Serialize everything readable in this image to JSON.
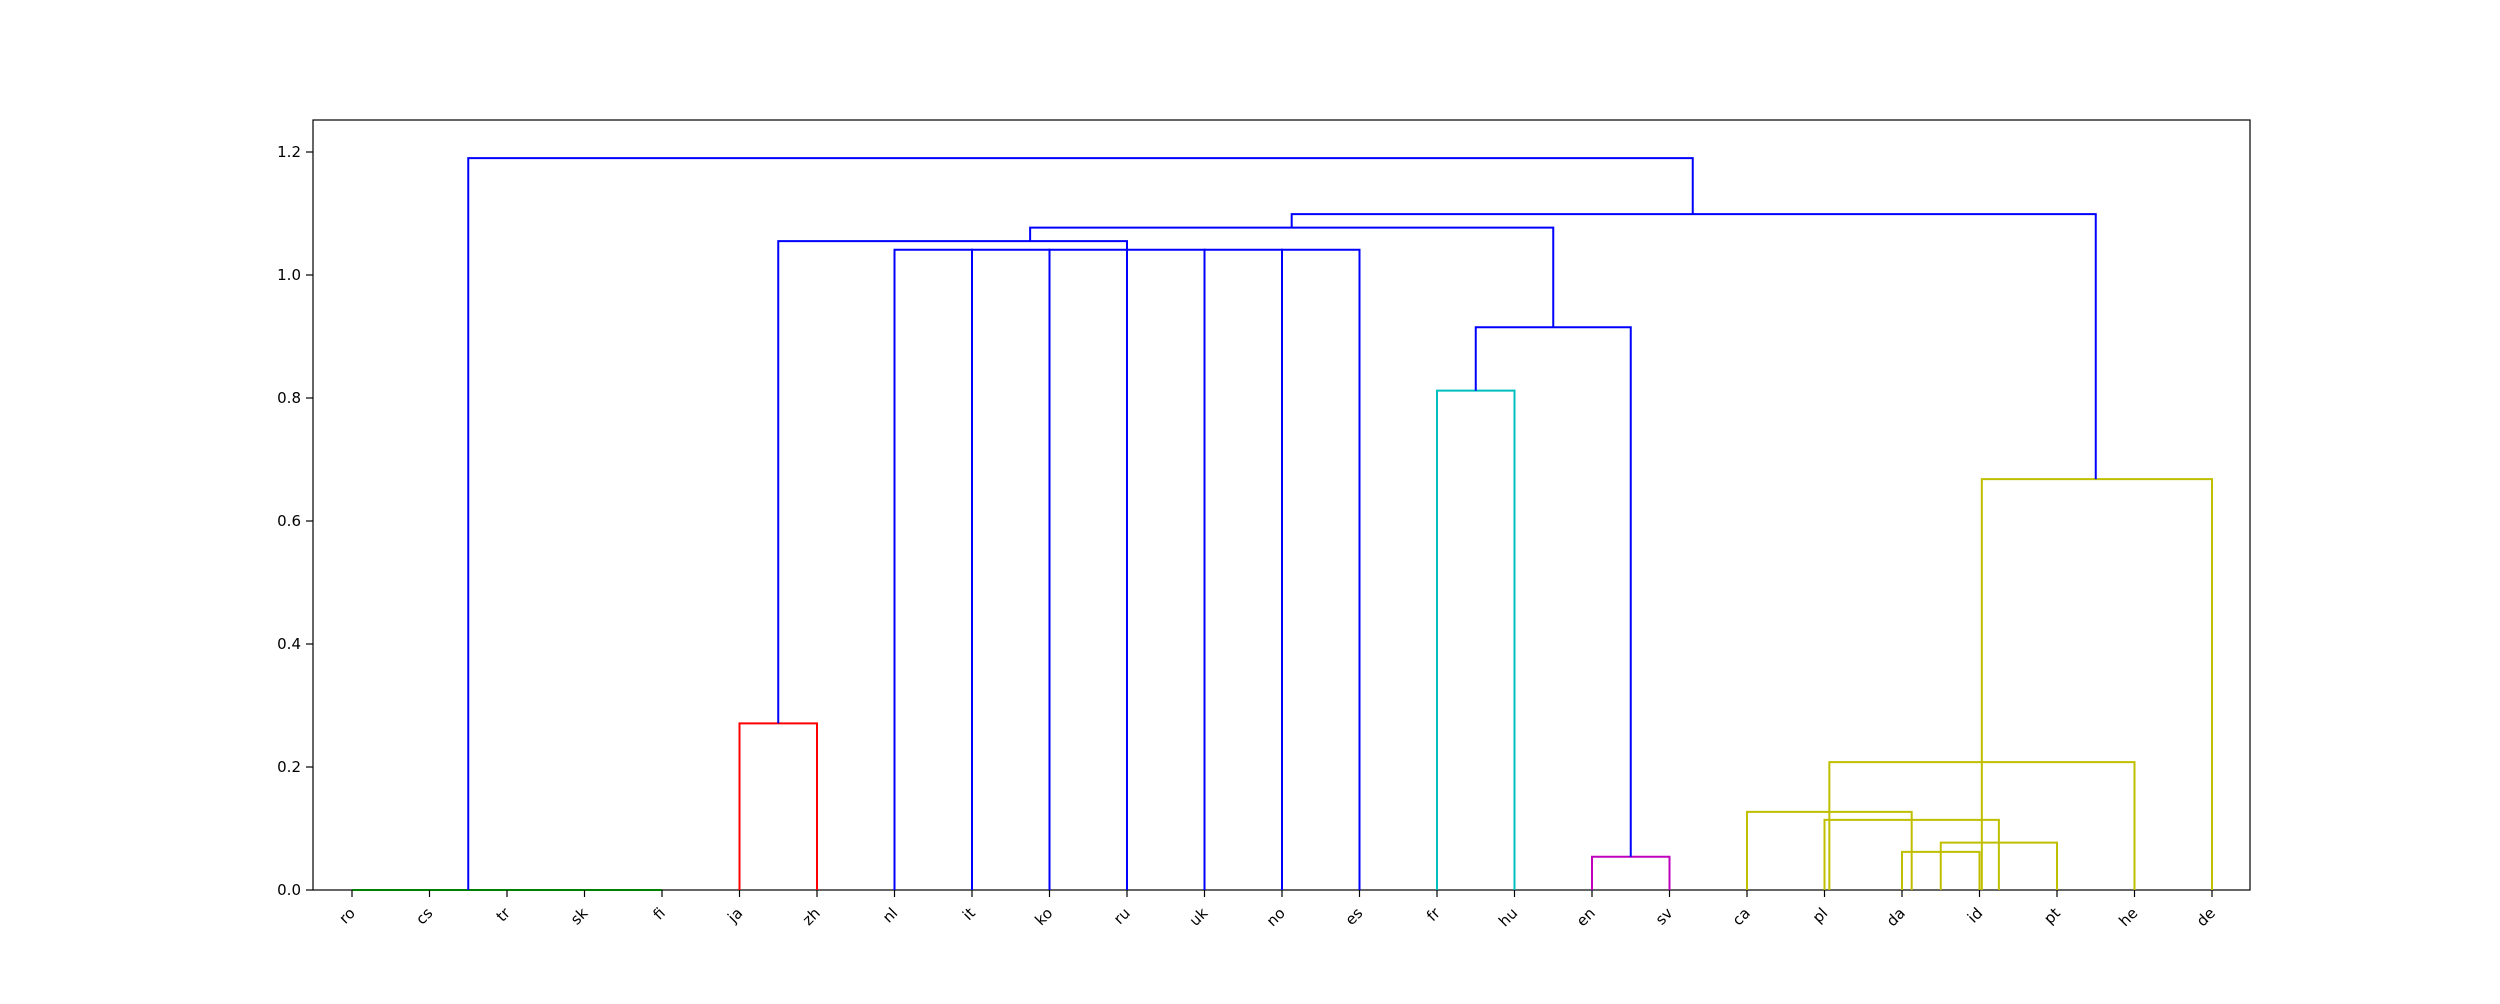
{
  "chart_data": {
    "type": "dendrogram",
    "title": "",
    "xlabel": "",
    "ylabel": "",
    "ylim": [
      0,
      1.25
    ],
    "y_ticks": [
      "0.0",
      "0.2",
      "0.4",
      "0.6",
      "0.8",
      "1.0",
      "1.2"
    ],
    "y_tick_values": [
      0.0,
      0.2,
      0.4,
      0.6,
      0.8,
      1.0,
      1.2
    ],
    "leaves": [
      "ro",
      "cs",
      "tr",
      "sk",
      "fi",
      "ja",
      "zh",
      "nl",
      "it",
      "ko",
      "ru",
      "uk",
      "no",
      "es",
      "fr",
      "hu",
      "en",
      "sv",
      "ca",
      "pl",
      "da",
      "id",
      "pt",
      "he",
      "de"
    ],
    "colors": {
      "green": "#008000",
      "red": "#ff0000",
      "cyan": "#00bfbf",
      "magenta": "#bf00bf",
      "yellow": "#bfbf00",
      "blue": "#0000ff"
    },
    "merges": [
      {
        "x1": 0,
        "x2": 1,
        "h": 0.0,
        "color": "green"
      },
      {
        "x1": 1,
        "x2": 2,
        "h": 0.0,
        "color": "green"
      },
      {
        "x1": 2,
        "x2": 3,
        "h": 0.0,
        "color": "green"
      },
      {
        "x1": 3,
        "x2": 4,
        "h": 0.0,
        "color": "green"
      },
      {
        "x1": 5,
        "x2": 6,
        "h": 0.271,
        "color": "red"
      },
      {
        "x1": 14,
        "x2": 15,
        "h": 0.812,
        "color": "cyan"
      },
      {
        "x1": 16,
        "x2": 17,
        "h": 0.054,
        "color": "magenta"
      },
      {
        "x1": 20,
        "x2": 21,
        "h": 0.062,
        "color": "yellow"
      },
      {
        "x1": 20.5,
        "x2": 22,
        "h": 0.077,
        "color": "yellow"
      },
      {
        "x1": 19,
        "x2": 21.25,
        "h": 0.114,
        "color": "yellow"
      },
      {
        "x1": 18,
        "x2": 20.125,
        "h": 0.127,
        "color": "yellow"
      },
      {
        "x1": 19.0625,
        "x2": 23,
        "h": 0.208,
        "color": "yellow"
      },
      {
        "x1": 21.03,
        "x2": 24,
        "h": 0.668,
        "color": "yellow"
      },
      {
        "x1": 7,
        "x2": 8,
        "h": 1.041,
        "color": "blue"
      },
      {
        "x1": 8,
        "x2": 9,
        "h": 1.041,
        "color": "blue"
      },
      {
        "x1": 9,
        "x2": 10,
        "h": 1.041,
        "color": "blue"
      },
      {
        "x1": 10,
        "x2": 11,
        "h": 1.041,
        "color": "blue"
      },
      {
        "x1": 11,
        "x2": 12,
        "h": 1.041,
        "color": "blue"
      },
      {
        "x1": 12,
        "x2": 13,
        "h": 1.041,
        "color": "blue"
      },
      {
        "x1": 5.5,
        "x2": 10,
        "h": 1.055,
        "color": "blue",
        "left_h": 0.271,
        "right_h": 1.041
      },
      {
        "x1": 14.5,
        "x2": 16.5,
        "h": 0.915,
        "color": "blue",
        "left_h": 0.812,
        "right_h": 0.054
      },
      {
        "x1": 8.75,
        "x2": 15.5,
        "h": 1.077,
        "color": "blue",
        "left_h": 1.055,
        "right_h": 0.915
      },
      {
        "x1": 12.125,
        "x2": 22.5,
        "h": 1.099,
        "color": "blue",
        "left_h": 1.077,
        "right_h": 0.668
      },
      {
        "x1": 1.5,
        "x2": 17.3,
        "h": 1.19,
        "color": "blue",
        "left_h": 0.0,
        "right_h": 1.099
      }
    ]
  }
}
